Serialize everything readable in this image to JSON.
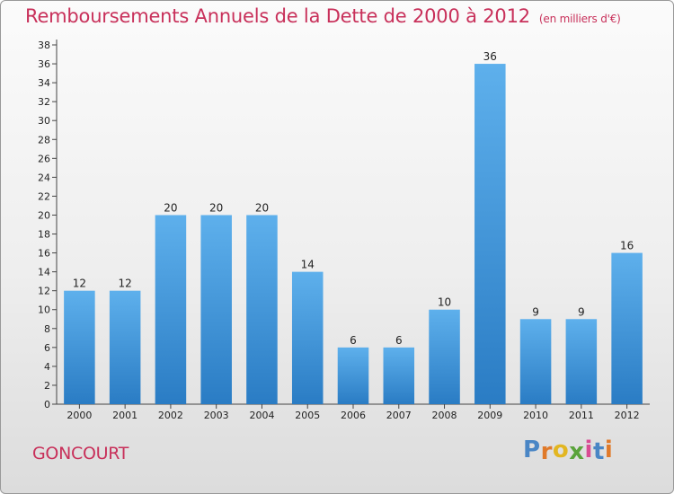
{
  "chart_data": {
    "type": "bar",
    "title": "Remboursements Annuels de la Dette de 2000 à 2012",
    "unit": "(en milliers d'€)",
    "categories": [
      "2000",
      "2001",
      "2002",
      "2003",
      "2004",
      "2005",
      "2006",
      "2007",
      "2008",
      "2009",
      "2010",
      "2011",
      "2012"
    ],
    "values": [
      12,
      12,
      20,
      20,
      20,
      14,
      6,
      6,
      10,
      36,
      9,
      9,
      16
    ],
    "ylim": [
      0,
      38
    ],
    "ytick_step": 2,
    "grid": false,
    "bar_color": "#3a8fd8",
    "bar_color_light": "#5eb0ec"
  },
  "location": "GONCOURT",
  "logo_text": "Proxiti",
  "logo_colors": [
    "#4a86c5",
    "#e07a2a",
    "#e2b622",
    "#5aa33b",
    "#d94c93",
    "#4a86c5",
    "#e07a2a"
  ]
}
